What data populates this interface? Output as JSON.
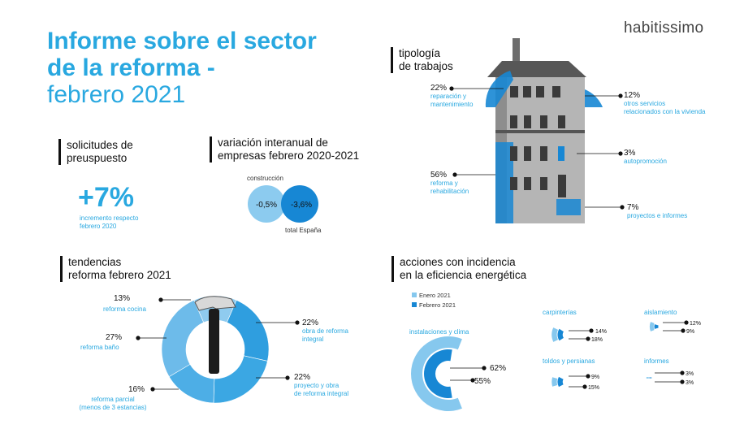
{
  "header": {
    "title_line1": "Informe sobre el sector",
    "title_line2": "de la reforma -",
    "title_line3": "febrero 2021",
    "logo": "habitissimo"
  },
  "solicitudes": {
    "heading_line1": "solicitudes de",
    "heading_line2": "preuspuesto",
    "value": "+7%",
    "caption_line1": "incremento respecto",
    "caption_line2": "febrero 2020"
  },
  "variacion": {
    "heading_line1": "variación interanual de",
    "heading_line2": "empresas febrero 2020-2021",
    "label_construccion": "construcción",
    "value_construccion": "-0,5%",
    "value_total": "-3,6%",
    "label_total": "total España"
  },
  "tipologia": {
    "heading_line1": "tipología",
    "heading_line2": "de trabajos",
    "items": [
      {
        "value": "22%",
        "label_line1": "reparación y",
        "label_line2": "mantenimiento"
      },
      {
        "value": "12%",
        "label_line1": "otros servicios",
        "label_line2": "relacionados con la vivienda"
      },
      {
        "value": "3%",
        "label_line1": "autopromoción",
        "label_line2": ""
      },
      {
        "value": "56%",
        "label_line1": "reforma y",
        "label_line2": "rehabilitación"
      },
      {
        "value": "7%",
        "label_line1": "proyectos e informes",
        "label_line2": ""
      }
    ]
  },
  "tendencias": {
    "heading_line1": "tendencias",
    "heading_line2": "reforma febrero 2021",
    "items": [
      {
        "value": "13%",
        "label_line1": "reforma cocina",
        "label_line2": ""
      },
      {
        "value": "27%",
        "label_line1": "reforma baño",
        "label_line2": ""
      },
      {
        "value": "16%",
        "label_line1": "reforma parcial",
        "label_line2": "(menos de 3 estancias)"
      },
      {
        "value": "22%",
        "label_line1": "obra de reforma",
        "label_line2": "integral"
      },
      {
        "value": "22%",
        "label_line1": "proyecto y obra",
        "label_line2": "de reforma integral"
      }
    ]
  },
  "acciones": {
    "heading_line1": "acciones con incidencia",
    "heading_line2": "en la eficiencia energética",
    "legend": [
      "Enero 2021",
      "Febrero 2021"
    ],
    "groups": [
      {
        "name": "instalaciones y clima",
        "enero": "62%",
        "febrero": "55%"
      },
      {
        "name": "carpinterías",
        "enero": "14%",
        "febrero": "18%"
      },
      {
        "name": "aislamiento",
        "enero": "12%",
        "febrero": "9%"
      },
      {
        "name": "toldos y persianas",
        "enero": "9%",
        "febrero": "15%"
      },
      {
        "name": "informes",
        "enero": "3%",
        "febrero": "3%"
      }
    ]
  },
  "colors": {
    "accent": "#29a8e0",
    "light_blue": "#86c8ee",
    "mid_blue": "#3fa6e2",
    "dark_blue": "#1787d4",
    "building_gray": "#9a9a9a"
  },
  "chart_data": [
    {
      "type": "pie",
      "title": "tipología de trabajos",
      "categories": [
        "reparación y mantenimiento",
        "otros servicios relacionados con la vivienda",
        "autopromoción",
        "reforma y rehabilitación",
        "proyectos e informes"
      ],
      "values": [
        22,
        12,
        3,
        56,
        7
      ]
    },
    {
      "type": "pie",
      "title": "tendencias reforma febrero 2021",
      "categories": [
        "reforma cocina",
        "reforma baño",
        "reforma parcial (menos de 3 estancias)",
        "obra de reforma integral",
        "proyecto y obra de reforma integral"
      ],
      "values": [
        13,
        27,
        16,
        22,
        22
      ]
    },
    {
      "type": "bar",
      "title": "acciones con incidencia en la eficiencia energética",
      "categories": [
        "instalaciones y clima",
        "carpinterías",
        "aislamiento",
        "toldos y persianas",
        "informes"
      ],
      "series": [
        {
          "name": "Enero 2021",
          "values": [
            62,
            14,
            12,
            9,
            3
          ]
        },
        {
          "name": "Febrero 2021",
          "values": [
            55,
            18,
            9,
            15,
            3
          ]
        }
      ]
    },
    {
      "type": "scatter",
      "title": "variación interanual de empresas febrero 2020-2021",
      "categories": [
        "construcción",
        "total España"
      ],
      "values": [
        -0.5,
        -3.6
      ]
    }
  ]
}
